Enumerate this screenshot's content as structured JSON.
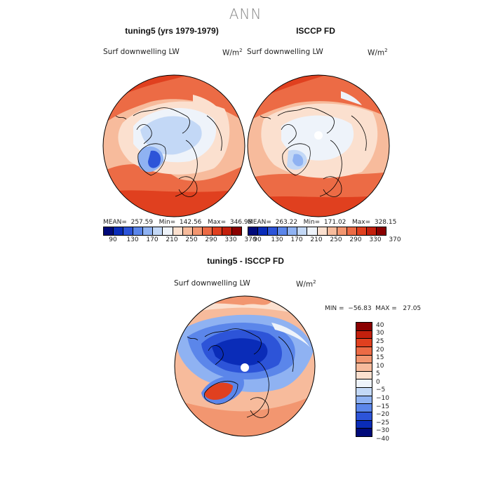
{
  "suptitle": "ANN",
  "panels": [
    {
      "title": "tuning5 (yrs 1979-1979)",
      "variable": "Surf downwelling LW",
      "units": "W/m",
      "units_sup": "2",
      "stats": "MEAN=  257.59   Min=  142.56   Max=  346.98"
    },
    {
      "title": "ISCCP FD",
      "variable": "Surf downwelling LW",
      "units": "W/m",
      "units_sup": "2",
      "stats": "MEAN=  263.22   Min=  171.02   Max=  328.15"
    },
    {
      "title": "tuning5 - ISCCP FD",
      "variable": "Surf downwelling LW",
      "units": "W/m",
      "units_sup": "2",
      "stats": "MIN =  −56.83  MAX =   27.05"
    }
  ],
  "abs_colorbar": {
    "colors": [
      "#000a7a",
      "#0a2cb8",
      "#2d54d8",
      "#5b86ea",
      "#8fb2f2",
      "#c3d8f6",
      "#eef3fa",
      "#fbe0cf",
      "#f7bb9c",
      "#f29670",
      "#ec6b45",
      "#e0401f",
      "#c3200d",
      "#8a0000"
    ],
    "ticks": [
      "90",
      "130",
      "170",
      "210",
      "250",
      "290",
      "330",
      "370"
    ]
  },
  "diff_colorbar": {
    "colors": [
      "#8a0000",
      "#c3200d",
      "#e0401f",
      "#ec6b45",
      "#f29670",
      "#f7bb9c",
      "#fbe0cf",
      "#eef3fa",
      "#c3d8f6",
      "#8fb2f2",
      "#5b86ea",
      "#2d54d8",
      "#0a2cb8",
      "#000a7a"
    ],
    "ticks": [
      "40",
      "30",
      "25",
      "20",
      "15",
      "10",
      "5",
      "0",
      "−5",
      "−10",
      "−15",
      "−20",
      "−25",
      "−30",
      "−40"
    ]
  }
}
